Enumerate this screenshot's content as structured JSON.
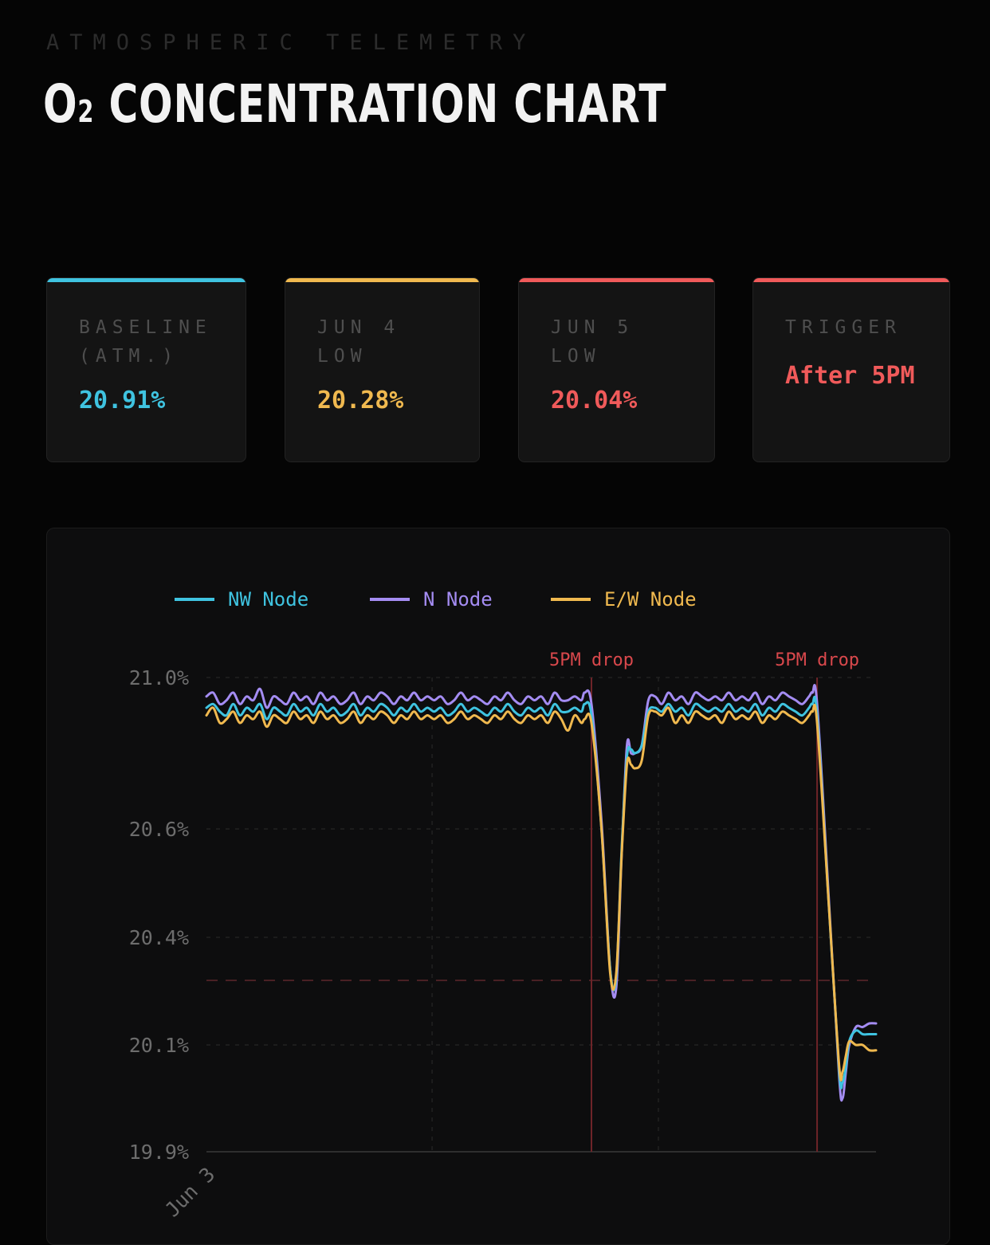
{
  "header": {
    "eyebrow": "ATMOSPHERIC TELEMETRY",
    "title_main": "O",
    "title_sub": "2",
    "title_rest": " CONCENTRATION CHART"
  },
  "cards": [
    {
      "label": "BASELINE\n(ATM.)",
      "value": "20.91%",
      "accent": "#3fc3e0"
    },
    {
      "label": "JUN 4\nLOW",
      "value": "20.28%",
      "accent": "#f0b94f"
    },
    {
      "label": "JUN 5\nLOW",
      "value": "20.04%",
      "accent": "#f05a5a"
    },
    {
      "label": "TRIGGER",
      "value": "After 5PM",
      "accent": "#f05a5a"
    }
  ],
  "chart_data": {
    "type": "line",
    "y_ticks": [
      "21.0%",
      "20.6%",
      "20.4%",
      "20.1%",
      "19.9%"
    ],
    "y_tick_values": [
      21.0,
      20.6,
      20.4,
      20.1,
      19.9
    ],
    "x_tick_labels": [
      "Jun 3"
    ],
    "grid": true,
    "legend_position": "top",
    "threshold": 20.28,
    "annotations": [
      {
        "label": "5PM drop",
        "x": 0.575
      },
      {
        "label": "5PM drop",
        "x": 0.912
      }
    ],
    "x": [
      0,
      0.01,
      0.02,
      0.03,
      0.04,
      0.05,
      0.06,
      0.07,
      0.08,
      0.09,
      0.1,
      0.11,
      0.12,
      0.13,
      0.14,
      0.15,
      0.16,
      0.17,
      0.18,
      0.19,
      0.2,
      0.21,
      0.22,
      0.23,
      0.24,
      0.25,
      0.26,
      0.27,
      0.28,
      0.29,
      0.3,
      0.31,
      0.32,
      0.33,
      0.34,
      0.35,
      0.36,
      0.37,
      0.38,
      0.39,
      0.4,
      0.41,
      0.42,
      0.43,
      0.44,
      0.45,
      0.46,
      0.47,
      0.48,
      0.49,
      0.5,
      0.51,
      0.52,
      0.53,
      0.54,
      0.55,
      0.56,
      0.565,
      0.575,
      0.59,
      0.603,
      0.612,
      0.62,
      0.628,
      0.634,
      0.64,
      0.65,
      0.66,
      0.67,
      0.68,
      0.69,
      0.7,
      0.71,
      0.72,
      0.73,
      0.74,
      0.75,
      0.76,
      0.77,
      0.78,
      0.79,
      0.8,
      0.81,
      0.82,
      0.83,
      0.84,
      0.85,
      0.86,
      0.87,
      0.88,
      0.89,
      0.9,
      0.905,
      0.912,
      0.93,
      0.945,
      0.95,
      0.955,
      0.96,
      0.97,
      0.98,
      0.99,
      1.0
    ],
    "series": [
      {
        "name": "NW Node",
        "color": "#3fc3e0",
        "values": [
          20.92,
          20.93,
          20.91,
          20.9,
          20.93,
          20.9,
          20.92,
          20.91,
          20.93,
          20.89,
          20.92,
          20.91,
          20.9,
          20.93,
          20.91,
          20.92,
          20.9,
          20.93,
          20.91,
          20.92,
          20.9,
          20.91,
          20.93,
          20.9,
          20.92,
          20.91,
          20.93,
          20.92,
          20.9,
          20.92,
          20.91,
          20.93,
          20.91,
          20.92,
          20.91,
          20.92,
          20.9,
          20.91,
          20.93,
          20.91,
          20.92,
          20.91,
          20.9,
          20.92,
          20.91,
          20.93,
          20.91,
          20.9,
          20.92,
          20.91,
          20.92,
          20.9,
          20.93,
          20.91,
          20.91,
          20.92,
          20.91,
          20.93,
          20.9,
          20.6,
          20.31,
          20.29,
          20.56,
          20.79,
          20.81,
          20.8,
          20.82,
          20.91,
          20.92,
          20.91,
          20.93,
          20.91,
          20.92,
          20.9,
          20.93,
          20.92,
          20.91,
          20.92,
          20.91,
          20.93,
          20.91,
          20.92,
          20.91,
          20.93,
          20.9,
          20.92,
          20.91,
          20.93,
          20.92,
          20.91,
          20.9,
          20.92,
          20.93,
          20.9,
          20.45,
          20.05,
          20.03,
          20.06,
          20.11,
          20.14,
          20.13,
          20.13,
          20.13
        ]
      },
      {
        "name": "N Node",
        "color": "#a48cf2",
        "values": [
          20.95,
          20.96,
          20.93,
          20.94,
          20.96,
          20.93,
          20.95,
          20.94,
          20.97,
          20.92,
          20.95,
          20.94,
          20.93,
          20.96,
          20.94,
          20.95,
          20.93,
          20.96,
          20.94,
          20.95,
          20.93,
          20.94,
          20.96,
          20.93,
          20.95,
          20.94,
          20.96,
          20.95,
          20.93,
          20.95,
          20.94,
          20.96,
          20.94,
          20.95,
          20.94,
          20.95,
          20.93,
          20.94,
          20.96,
          20.94,
          20.95,
          20.94,
          20.93,
          20.95,
          20.94,
          20.96,
          20.94,
          20.93,
          20.95,
          20.94,
          20.95,
          20.93,
          20.96,
          20.94,
          20.94,
          20.95,
          20.94,
          20.96,
          20.93,
          20.62,
          20.31,
          20.26,
          20.55,
          20.82,
          20.8,
          20.8,
          20.82,
          20.94,
          20.95,
          20.93,
          20.96,
          20.94,
          20.95,
          20.93,
          20.96,
          20.95,
          20.94,
          20.95,
          20.94,
          20.96,
          20.94,
          20.95,
          20.94,
          20.96,
          20.93,
          20.95,
          20.94,
          20.96,
          20.95,
          20.94,
          20.93,
          20.95,
          20.96,
          20.93,
          20.46,
          20.04,
          20.0,
          20.05,
          20.1,
          20.15,
          20.15,
          20.16,
          20.16
        ]
      },
      {
        "name": "E/W Node",
        "color": "#f0b94f",
        "values": [
          20.9,
          20.92,
          20.88,
          20.89,
          20.91,
          20.88,
          20.9,
          20.89,
          20.91,
          20.87,
          20.9,
          20.89,
          20.88,
          20.91,
          20.89,
          20.9,
          20.88,
          20.91,
          20.89,
          20.9,
          20.88,
          20.89,
          20.91,
          20.88,
          20.9,
          20.89,
          20.91,
          20.9,
          20.88,
          20.9,
          20.89,
          20.91,
          20.89,
          20.9,
          20.89,
          20.9,
          20.88,
          20.89,
          20.91,
          20.89,
          20.9,
          20.89,
          20.88,
          20.9,
          20.89,
          20.91,
          20.89,
          20.88,
          20.9,
          20.89,
          20.9,
          20.88,
          20.91,
          20.89,
          20.86,
          20.9,
          20.88,
          20.89,
          20.88,
          20.6,
          20.3,
          20.3,
          20.55,
          20.77,
          20.77,
          20.76,
          20.78,
          20.9,
          20.91,
          20.9,
          20.92,
          20.88,
          20.9,
          20.88,
          20.91,
          20.9,
          20.89,
          20.9,
          20.88,
          20.91,
          20.89,
          20.9,
          20.89,
          20.91,
          20.88,
          20.9,
          20.89,
          20.91,
          20.9,
          20.89,
          20.88,
          20.9,
          20.91,
          20.88,
          20.45,
          20.06,
          20.05,
          20.08,
          20.11,
          20.1,
          20.1,
          20.09,
          20.09
        ]
      }
    ]
  }
}
